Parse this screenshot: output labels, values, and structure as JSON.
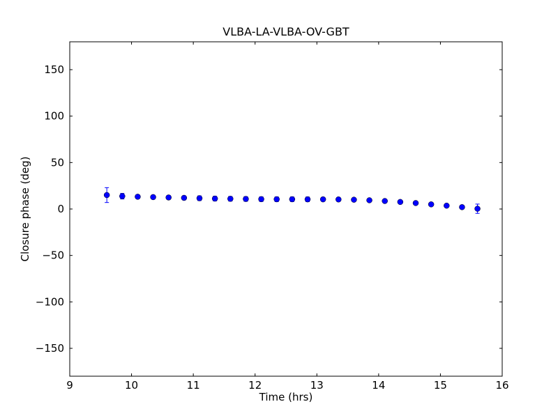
{
  "chart_data": {
    "type": "scatter",
    "title": "VLBA-LA-VLBA-OV-GBT",
    "xlabel": "Time (hrs)",
    "ylabel": "Closure phase (deg)",
    "xlim": [
      9,
      16
    ],
    "ylim": [
      -180,
      180
    ],
    "xticks": [
      9,
      10,
      11,
      12,
      13,
      14,
      15,
      16
    ],
    "yticks": [
      -150,
      -100,
      -50,
      0,
      50,
      100,
      150
    ],
    "grid": false,
    "legend": "none",
    "marker_color": "#0000ff",
    "axis_color": "#000000",
    "series": [
      {
        "name": "closure-phase",
        "x": [
          9.6,
          9.85,
          10.1,
          10.35,
          10.6,
          10.85,
          11.1,
          11.35,
          11.6,
          11.85,
          12.1,
          12.35,
          12.6,
          12.85,
          13.1,
          13.35,
          13.6,
          13.85,
          14.1,
          14.35,
          14.6,
          14.85,
          15.1,
          15.35,
          15.6
        ],
        "y": [
          15.0,
          13.8,
          13.2,
          12.8,
          12.4,
          12.0,
          11.6,
          11.2,
          11.0,
          10.8,
          10.6,
          10.5,
          10.5,
          10.4,
          10.4,
          10.3,
          10.0,
          9.4,
          8.6,
          7.6,
          6.4,
          5.0,
          3.6,
          2.0,
          0.3
        ],
        "yerr": [
          8,
          3,
          2,
          2,
          2,
          2,
          2.5,
          2.5,
          2.5,
          2.5,
          2.5,
          2.5,
          2.5,
          2.5,
          2,
          2,
          1.5,
          1.5,
          1.5,
          1.5,
          1.5,
          1.5,
          1.5,
          2,
          5
        ]
      }
    ]
  }
}
